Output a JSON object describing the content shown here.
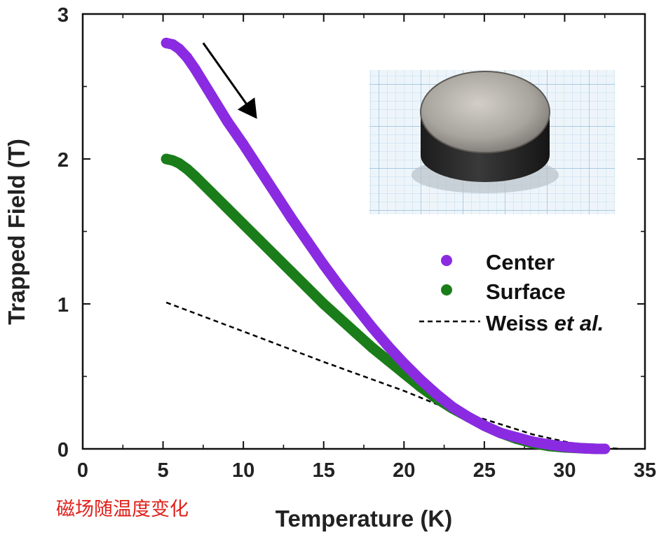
{
  "chart_data": {
    "type": "scatter",
    "title": "",
    "xlabel": "Temperature (K)",
    "ylabel": "Trapped Field (T)",
    "xlim": [
      0,
      35
    ],
    "ylim": [
      0,
      3
    ],
    "xticks": [
      0,
      5,
      10,
      15,
      20,
      25,
      30,
      35
    ],
    "yticks": [
      0,
      1,
      2,
      3
    ],
    "grid": false,
    "legend_position": "right",
    "series": [
      {
        "name": "Center",
        "style": "markers",
        "color": "#8a2be2",
        "x": [
          5.2,
          5.6,
          6.0,
          6.5,
          7.0,
          8.0,
          9.0,
          10.0,
          11.0,
          12.0,
          13.0,
          14.0,
          15.0,
          16.0,
          17.0,
          18.0,
          19.0,
          20.0,
          21.0,
          22.0,
          23.0,
          24.0,
          25.0,
          26.0,
          27.0,
          28.0,
          29.0,
          30.0,
          31.0,
          32.0,
          32.5
        ],
        "y": [
          2.8,
          2.79,
          2.76,
          2.7,
          2.62,
          2.44,
          2.26,
          2.1,
          1.93,
          1.76,
          1.59,
          1.43,
          1.27,
          1.12,
          0.98,
          0.84,
          0.71,
          0.59,
          0.48,
          0.38,
          0.29,
          0.22,
          0.16,
          0.11,
          0.08,
          0.05,
          0.03,
          0.015,
          0.005,
          0.0,
          0.0
        ]
      },
      {
        "name": "Surface",
        "style": "markers",
        "color": "#1a7d1a",
        "x": [
          5.2,
          5.6,
          6.0,
          6.5,
          7.0,
          8.0,
          9.0,
          10.0,
          11.0,
          12.0,
          13.0,
          14.0,
          15.0,
          16.0,
          17.0,
          18.0,
          19.0,
          20.0,
          21.0,
          22.0,
          23.0,
          24.0,
          25.0,
          26.0,
          27.0,
          28.0,
          29.0,
          30.0,
          31.0,
          32.0
        ],
        "y": [
          2.0,
          1.99,
          1.97,
          1.93,
          1.88,
          1.77,
          1.66,
          1.55,
          1.44,
          1.33,
          1.22,
          1.11,
          1.0,
          0.9,
          0.8,
          0.7,
          0.61,
          0.52,
          0.43,
          0.35,
          0.28,
          0.22,
          0.16,
          0.11,
          0.07,
          0.04,
          0.02,
          0.01,
          0.005,
          0.0
        ]
      },
      {
        "name": "Weiss et al.",
        "name_main": "Weiss ",
        "name_italic": "et al.",
        "style": "dashed",
        "color": "#000000",
        "x": [
          5.2,
          10.0,
          15.0,
          20.0,
          22.0,
          24.0,
          26.0,
          28.0,
          30.0,
          32.0,
          33.5
        ],
        "y": [
          1.01,
          0.81,
          0.6,
          0.4,
          0.31,
          0.24,
          0.17,
          0.1,
          0.05,
          0.01,
          0.0
        ]
      }
    ],
    "annotations": [
      {
        "type": "arrow",
        "from": [
          7.5,
          2.8
        ],
        "to": [
          10.7,
          2.3
        ]
      },
      {
        "type": "inset-photo",
        "content": "cylindrical sample on graph paper"
      }
    ]
  },
  "caption": "磁场随温度变化"
}
